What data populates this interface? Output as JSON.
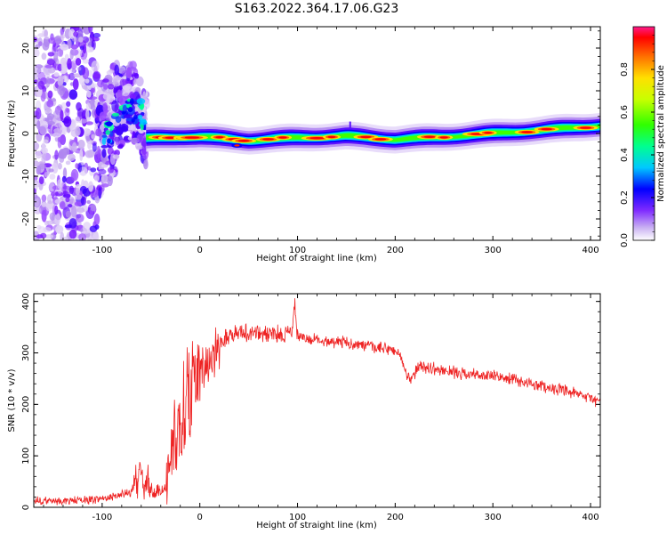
{
  "title": "S163.2022.364.17.06.G23",
  "colorbar": {
    "label": "Normalized spectral amplitude",
    "ticks": [
      "0.0",
      "0.2",
      "0.4",
      "0.6",
      "0.8"
    ]
  },
  "chart_data": [
    {
      "type": "heatmap",
      "xlabel": "Height of straight line (km)",
      "ylabel": "Frequency (Hz)",
      "xlim": [
        -170,
        410
      ],
      "ylim": [
        -25,
        25
      ],
      "xticks": [
        -100,
        0,
        100,
        200,
        300,
        400
      ],
      "xtick_labels": [
        "-100",
        "0",
        "100",
        "200",
        "300",
        "400"
      ],
      "yticks": [
        -20,
        -10,
        0,
        10,
        20
      ],
      "ytick_labels": [
        "-20",
        "-10",
        "0",
        "10",
        "20"
      ],
      "ridge": {
        "x": [
          -55,
          -40,
          -20,
          0,
          50,
          100,
          150,
          200,
          250,
          300,
          350,
          410
        ],
        "freq": [
          -1.2,
          -1.0,
          -0.8,
          -0.8,
          -1.6,
          -1.0,
          -0.6,
          -1.4,
          -0.8,
          0.0,
          0.8,
          1.8
        ]
      },
      "noise_region": {
        "x": [
          -170,
          -55
        ],
        "freq": [
          -25,
          25
        ]
      },
      "colorscale": [
        "#ffffff",
        "#d9c4f5",
        "#9b4dff",
        "#5a00ff",
        "#0000ff",
        "#00d8ff",
        "#00ff80",
        "#40ff00",
        "#c0ff00",
        "#ffe000",
        "#ff8000",
        "#ff0000",
        "#ff1a8c"
      ]
    },
    {
      "type": "line",
      "xlabel": "Height of straight line (km)",
      "ylabel": "SNR (10 * v/v)",
      "xlim": [
        -170,
        410
      ],
      "ylim": [
        0,
        415
      ],
      "xticks": [
        -100,
        0,
        100,
        200,
        300,
        400
      ],
      "xtick_labels": [
        "-100",
        "0",
        "100",
        "200",
        "300",
        "400"
      ],
      "yticks": [
        0,
        100,
        200,
        300,
        400
      ],
      "ytick_labels": [
        "0",
        "100",
        "200",
        "300",
        "400"
      ],
      "color": "#ee2222",
      "series": [
        {
          "x": [
            -170,
            -140,
            -110,
            -90,
            -70,
            -62,
            -55,
            -45,
            -35,
            -30,
            -25,
            -20,
            -15,
            -10,
            -5,
            0,
            10,
            20,
            30,
            40,
            60,
            80,
            95,
            97,
            100,
            120,
            150,
            180,
            200,
            205,
            210,
            215,
            225,
            250,
            280,
            300,
            320,
            340,
            360,
            380,
            400,
            410
          ],
          "y": [
            12,
            12,
            15,
            20,
            30,
            60,
            45,
            25,
            40,
            100,
            140,
            160,
            190,
            210,
            240,
            255,
            290,
            320,
            335,
            340,
            338,
            335,
            340,
            405,
            330,
            325,
            320,
            310,
            305,
            295,
            265,
            245,
            275,
            265,
            258,
            255,
            248,
            240,
            232,
            222,
            212,
            205
          ]
        }
      ]
    }
  ]
}
